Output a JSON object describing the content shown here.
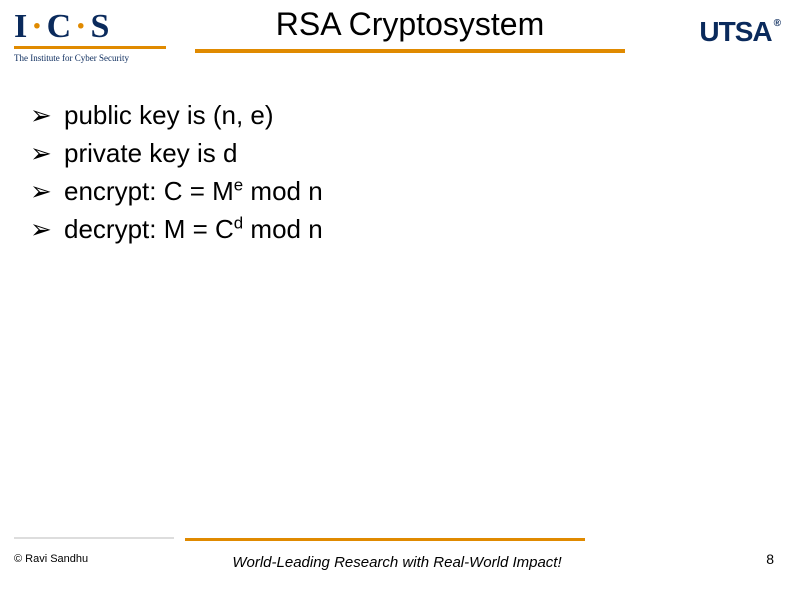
{
  "colors": {
    "accent": "#e08a00",
    "brand_blue": "#0a2a5c",
    "text": "#000000",
    "background": "#ffffff"
  },
  "typography": {
    "title_fontsize": 32,
    "bullet_fontsize": 26,
    "footer_fontsize": 11,
    "tagline_fontsize": 15
  },
  "header": {
    "left_logo": {
      "main_1": "I",
      "main_2": "C",
      "main_3": "S",
      "subtitle": "The Institute for Cyber Security"
    },
    "title": "RSA Cryptosystem",
    "right_logo": {
      "text": "UTSA",
      "mark": "®"
    }
  },
  "bullets": [
    {
      "marker": "➢",
      "html": "public key is (n, e)"
    },
    {
      "marker": "➢",
      "html": "private key is d"
    },
    {
      "marker": "➢",
      "html": "encrypt: C = M<sup>e</sup> mod n"
    },
    {
      "marker": "➢",
      "html": "decrypt: M = C<sup>d</sup> mod n"
    }
  ],
  "footer": {
    "copyright": "© Ravi  Sandhu",
    "tagline": "World-Leading Research with Real-World Impact!",
    "page_number": "8"
  }
}
